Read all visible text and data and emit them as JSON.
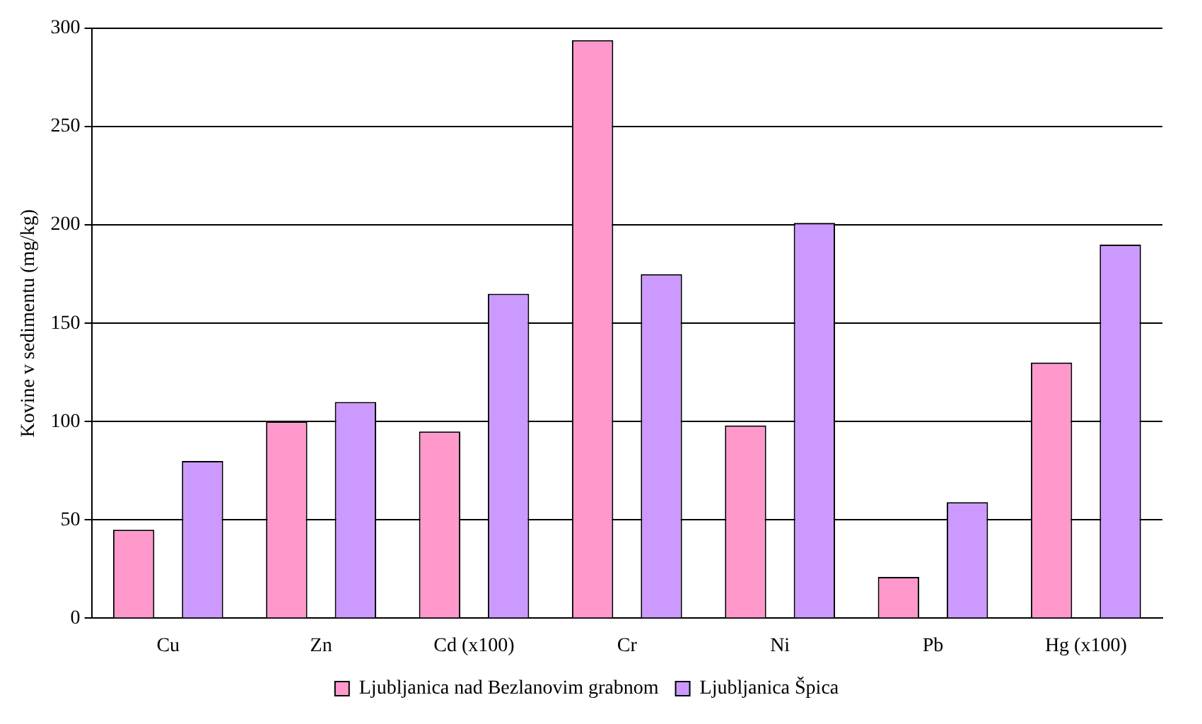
{
  "chart_data": {
    "type": "bar",
    "ylabel": "Kovine v sedimentu (mg/kg)",
    "categories": [
      "Cu",
      "Zn",
      "Cd (x100)",
      "Cr",
      "Ni",
      "Pb",
      "Hg (x100)"
    ],
    "series": [
      {
        "name": "Ljubljanica nad Bezlanovim grabnom",
        "color": "#ff99cc",
        "values": [
          45,
          100,
          95,
          294,
          98,
          21,
          130
        ]
      },
      {
        "name": "Ljubljanica Špica",
        "color": "#cc99ff",
        "values": [
          80,
          110,
          165,
          175,
          201,
          59,
          190
        ]
      }
    ],
    "ylim": [
      0,
      300
    ],
    "yticks": [
      0,
      50,
      100,
      150,
      200,
      250,
      300
    ],
    "grid": "y",
    "legend": "bottom"
  }
}
